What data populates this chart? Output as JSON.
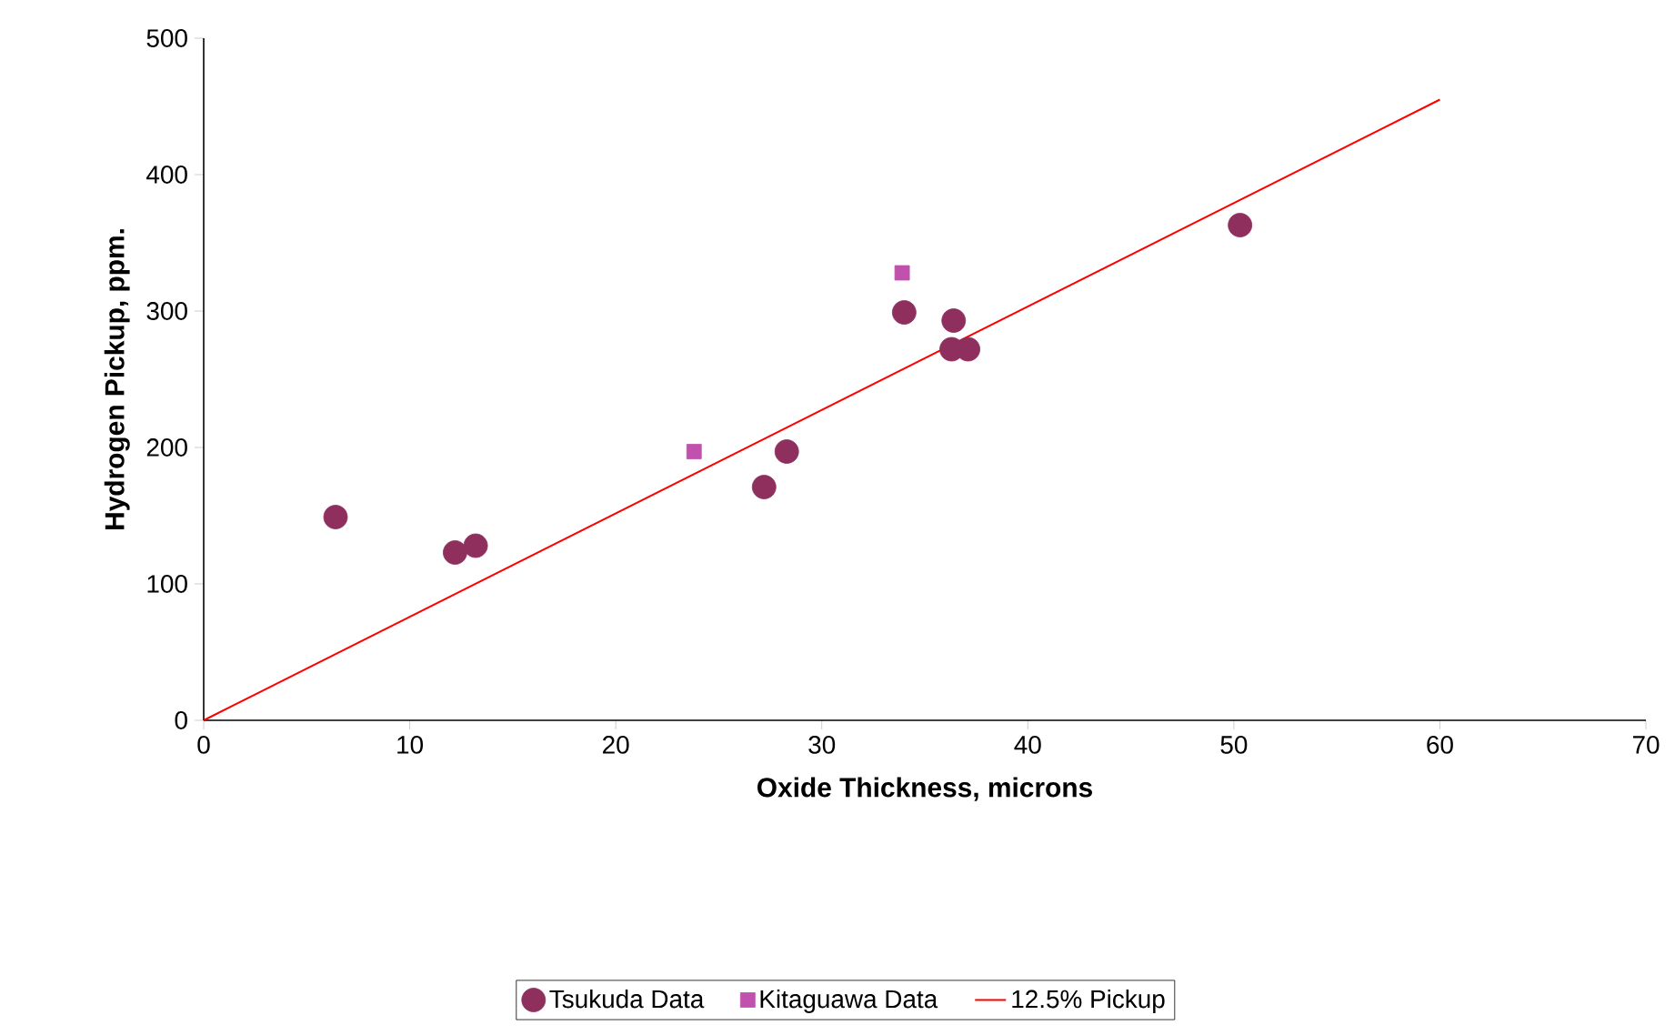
{
  "chart_data": {
    "type": "scatter",
    "xlabel": "Oxide Thickness, microns",
    "ylabel": "Hydrogen Pickup, ppm.",
    "xlim": [
      0,
      70
    ],
    "ylim": [
      0,
      500
    ],
    "xticks": [
      0,
      10,
      20,
      30,
      40,
      50,
      60,
      70
    ],
    "yticks": [
      0,
      100,
      200,
      300,
      400,
      500
    ],
    "grid": false,
    "legend": "bottom",
    "series": [
      {
        "name": "Tsukuda Data",
        "color": "#8e2f5e",
        "marker": "circle",
        "x": [
          6.4,
          12.2,
          13.2,
          27.2,
          28.3,
          34.0,
          36.4,
          36.3,
          37.1,
          50.3
        ],
        "values": [
          149,
          123,
          128,
          171,
          197,
          299,
          293,
          272,
          272,
          363
        ]
      },
      {
        "name": "Kitaguawa Data",
        "color": "#c052ad",
        "marker": "square",
        "x": [
          23.8,
          33.9
        ],
        "values": [
          197,
          328
        ]
      },
      {
        "name": "12.5% Pickup",
        "type": "line",
        "color": "#ff0000",
        "marker": "none",
        "x": [
          0,
          60
        ],
        "values": [
          0,
          455
        ]
      }
    ]
  }
}
